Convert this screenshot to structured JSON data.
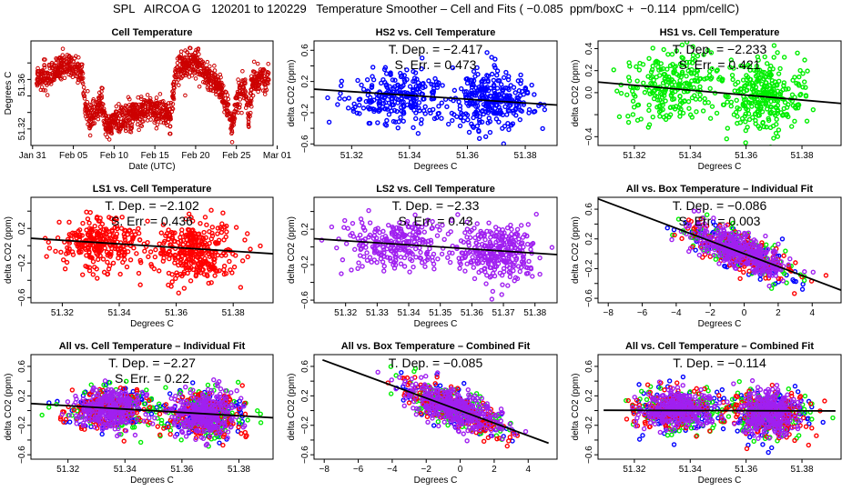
{
  "main_title": "SPL   AIRCOA G   120201 to 120229   Temperature Smoother – Cell and Fits ( −0.085  ppm/boxC +  −0.114  ppm/cellC)",
  "colors": {
    "HS2": "#0000ff",
    "HS1": "#00ee00",
    "LS1": "#ff0000",
    "LS2": "#a020f0",
    "cell_temp": "#cc0000",
    "fit_line": "#000000"
  },
  "chart_data": [
    {
      "id": "cell-temperature",
      "type": "scatter",
      "title": "Cell Temperature",
      "xlabel": "Date (UTC)",
      "ylabel": "Degrees C",
      "x_ticks": [
        "Jan 31",
        "Feb 05",
        "Feb 10",
        "Feb 15",
        "Feb 20",
        "Feb 25",
        "Mar 01"
      ],
      "xlim_days": [
        -0.2,
        29.5
      ],
      "y_ticks": [
        51.32,
        51.36
      ],
      "y_tick_labels": [
        "51.32",
        "51.36"
      ],
      "ylim": [
        51.305,
        51.4
      ],
      "series": [
        {
          "name": "cell",
          "color": "#cc0000",
          "profile_day": [
            1,
            2,
            3,
            4,
            5,
            6,
            6.5,
            7,
            8,
            8.5,
            9,
            10,
            11,
            12,
            13,
            14,
            15,
            16,
            17,
            17.5,
            18,
            19,
            20,
            21,
            22,
            23,
            24,
            24.5,
            25,
            26,
            26.5,
            27,
            28,
            29
          ],
          "profile_temp": [
            51.365,
            51.367,
            51.375,
            51.377,
            51.376,
            51.372,
            51.34,
            51.33,
            51.34,
            51.345,
            51.322,
            51.325,
            51.33,
            51.332,
            51.335,
            51.337,
            51.338,
            51.336,
            51.33,
            51.37,
            51.375,
            51.378,
            51.382,
            51.372,
            51.365,
            51.36,
            51.335,
            51.32,
            51.345,
            51.36,
            51.33,
            51.362,
            51.365,
            51.366
          ]
        }
      ]
    },
    {
      "id": "hs2-vs-cell",
      "type": "scatter",
      "title": "HS2 vs. Cell Temperature",
      "xlabel": "Degrees C",
      "ylabel": "delta CO2 (ppm)",
      "xlim": [
        51.307,
        51.391
      ],
      "ylim": [
        -0.62,
        0.72
      ],
      "x_ticks": [
        51.32,
        51.34,
        51.36,
        51.38
      ],
      "x_tick_labels": [
        "51.32",
        "51.34",
        "51.36",
        "51.38"
      ],
      "y_ticks": [
        -0.6,
        -0.4,
        -0.2,
        0,
        0.2,
        0.4,
        0.6
      ],
      "y_tick_labels": [
        "−0.6",
        "",
        "−0.2",
        "",
        "0.2",
        "",
        "0.6"
      ],
      "annotations": [
        "T. Dep. =  −2.417",
        "S. Err. =  0.473"
      ],
      "fit": {
        "slope": -2.417,
        "x0": 51.349,
        "y0": 0.0
      },
      "series": [
        {
          "name": "HS2",
          "color": "#0000ff",
          "clusters": [
            [
              51.336,
              0.0,
              0.009,
              0.16,
              260
            ],
            [
              51.368,
              -0.03,
              0.007,
              0.18,
              300
            ]
          ]
        }
      ]
    },
    {
      "id": "hs1-vs-cell",
      "type": "scatter",
      "title": "HS1 vs. Cell Temperature",
      "xlabel": "Degrees C",
      "ylabel": "delta CO2 (ppm)",
      "xlim": [
        51.307,
        51.394
      ],
      "ylim": [
        -0.48,
        0.47
      ],
      "x_ticks": [
        51.32,
        51.34,
        51.36,
        51.38
      ],
      "x_tick_labels": [
        "51.32",
        "51.34",
        "51.36",
        "51.38"
      ],
      "y_ticks": [
        -0.4,
        -0.2,
        0.0,
        0.2,
        0.4
      ],
      "y_tick_labels": [
        "−0.4",
        "",
        "0.0",
        "0.2",
        "0.4"
      ],
      "annotations": [
        "T. Dep. =  −2.233",
        "S. Err. =  0.421"
      ],
      "fit": {
        "slope": -2.233,
        "x0": 51.35,
        "y0": 0.0
      },
      "series": [
        {
          "name": "HS1",
          "color": "#00ee00",
          "clusters": [
            [
              51.334,
              0.05,
              0.009,
              0.14,
              260
            ],
            [
              51.367,
              -0.03,
              0.007,
              0.16,
              300
            ]
          ]
        }
      ]
    },
    {
      "id": "ls1-vs-cell",
      "type": "scatter",
      "title": "LS1 vs. Cell Temperature",
      "xlabel": "Degrees C",
      "ylabel": "delta CO2 (ppm)",
      "xlim": [
        51.309,
        51.394
      ],
      "ylim": [
        -0.66,
        0.56
      ],
      "x_ticks": [
        51.32,
        51.34,
        51.36,
        51.38
      ],
      "x_tick_labels": [
        "51.32",
        "51.34",
        "51.36",
        "51.38"
      ],
      "y_ticks": [
        -0.6,
        -0.4,
        -0.2,
        0,
        0.2,
        0.4
      ],
      "y_tick_labels": [
        "−0.6",
        "",
        "−0.2",
        "",
        "0.2",
        ""
      ],
      "annotations": [
        "T. Dep. =  −2.102",
        "S. Err. =  0.436"
      ],
      "fit": {
        "slope": -2.102,
        "x0": 51.35,
        "y0": 0.0
      },
      "series": [
        {
          "name": "LS1",
          "color": "#ff0000",
          "clusters": [
            [
              51.334,
              0.04,
              0.008,
              0.15,
              280
            ],
            [
              51.367,
              -0.07,
              0.007,
              0.17,
              320
            ]
          ]
        }
      ]
    },
    {
      "id": "ls2-vs-cell",
      "type": "scatter",
      "title": "LS2 vs. Cell Temperature",
      "xlabel": "Degrees C",
      "ylabel": "delta CO2 (ppm)",
      "xlim": [
        51.31,
        51.387
      ],
      "ylim": [
        -0.63,
        0.56
      ],
      "x_ticks": [
        51.32,
        51.33,
        51.34,
        51.35,
        51.36,
        51.37,
        51.38
      ],
      "x_tick_labels": [
        "51.32",
        "51.33",
        "51.34",
        "51.35",
        "51.36",
        "51.37",
        "51.38"
      ],
      "y_ticks": [
        -0.6,
        -0.4,
        -0.2,
        0,
        0.2,
        0.4
      ],
      "y_tick_labels": [
        "−0.6",
        "",
        "−0.2",
        "",
        "0.2",
        ""
      ],
      "annotations": [
        "T. Dep. =  −2.33",
        "S. Err. =  0.43"
      ],
      "fit": {
        "slope": -2.33,
        "x0": 51.35,
        "y0": 0.0
      },
      "series": [
        {
          "name": "LS2",
          "color": "#a020f0",
          "clusters": [
            [
              51.335,
              0.03,
              0.008,
              0.14,
              260
            ],
            [
              51.368,
              -0.06,
              0.006,
              0.16,
              300
            ]
          ]
        }
      ]
    },
    {
      "id": "all-vs-box-individual",
      "type": "scatter",
      "title": "All vs. Box Temperature – Individual Fit",
      "xlabel": "Degrees C",
      "ylabel": "delta CO2 (ppm)",
      "xlim": [
        -8.6,
        5.7
      ],
      "ylim": [
        -0.66,
        0.76
      ],
      "x_ticks": [
        -8,
        -6,
        -4,
        -2,
        0,
        2,
        4
      ],
      "x_tick_labels": [
        "−8",
        "−6",
        "−4",
        "−2",
        "0",
        "2",
        "4"
      ],
      "y_ticks": [
        -0.6,
        -0.4,
        -0.2,
        0,
        0.2,
        0.4,
        0.6
      ],
      "y_tick_labels": [
        "−0.6",
        "",
        "−0.2",
        "",
        "0.2",
        "",
        "0.6"
      ],
      "annotations": [
        "T. Dep. =  −0.086",
        "S. Err. =  0.003"
      ],
      "fit": {
        "slope": -0.086,
        "x0": 0,
        "y0": 0.0
      },
      "series": [
        {
          "name": "HS2",
          "color": "#0000ff",
          "clusters": [
            [
              -0.3,
              0.03,
              1.6,
              0.16,
              140
            ]
          ]
        },
        {
          "name": "HS1",
          "color": "#00ee00",
          "clusters": [
            [
              -0.3,
              0.03,
              1.6,
              0.16,
              140
            ]
          ]
        },
        {
          "name": "LS1",
          "color": "#ff0000",
          "clusters": [
            [
              -0.3,
              0.03,
              1.6,
              0.16,
              160
            ]
          ]
        },
        {
          "name": "LS2",
          "color": "#a020f0",
          "clusters": [
            [
              -0.3,
              0.03,
              1.4,
              0.15,
              380
            ]
          ]
        }
      ]
    },
    {
      "id": "all-vs-cell-individual",
      "type": "scatter",
      "title": "All vs. Cell Temperature – Individual Fit",
      "xlabel": "Degrees C",
      "ylabel": "delta CO2 (ppm)",
      "xlim": [
        51.307,
        51.392
      ],
      "ylim": [
        -0.66,
        0.76
      ],
      "x_ticks": [
        51.32,
        51.34,
        51.36,
        51.38
      ],
      "x_tick_labels": [
        "51.32",
        "51.34",
        "51.36",
        "51.38"
      ],
      "y_ticks": [
        -0.6,
        -0.4,
        -0.2,
        0,
        0.2,
        0.4,
        0.6
      ],
      "y_tick_labels": [
        "−0.6",
        "",
        "−0.2",
        "",
        "0.2",
        "",
        "0.6"
      ],
      "annotations": [
        "T. Dep. =  −2.27",
        "S. Err. =  0.22"
      ],
      "fit": {
        "slope": -2.27,
        "x0": 51.349,
        "y0": 0.0
      },
      "series": [
        {
          "name": "HS2",
          "color": "#0000ff",
          "clusters": [
            [
              51.335,
              0.02,
              0.008,
              0.15,
              120
            ],
            [
              51.368,
              -0.04,
              0.007,
              0.17,
              130
            ]
          ]
        },
        {
          "name": "HS1",
          "color": "#00ee00",
          "clusters": [
            [
              51.335,
              0.02,
              0.008,
              0.15,
              120
            ],
            [
              51.368,
              -0.04,
              0.007,
              0.17,
              130
            ]
          ]
        },
        {
          "name": "LS1",
          "color": "#ff0000",
          "clusters": [
            [
              51.335,
              0.02,
              0.008,
              0.15,
              140
            ],
            [
              51.368,
              -0.04,
              0.007,
              0.17,
              150
            ]
          ]
        },
        {
          "name": "LS2",
          "color": "#a020f0",
          "clusters": [
            [
              51.335,
              0.02,
              0.006,
              0.13,
              300
            ],
            [
              51.368,
              -0.04,
              0.005,
              0.15,
              320
            ]
          ]
        }
      ]
    },
    {
      "id": "all-vs-box-combined",
      "type": "scatter",
      "title": "All vs. Box Temperature – Combined Fit",
      "xlabel": "Degrees C",
      "ylabel": "delta CO2 (ppm)",
      "xlim": [
        -8.6,
        5.7
      ],
      "ylim": [
        -0.66,
        0.76
      ],
      "x_ticks": [
        -8,
        -6,
        -4,
        -2,
        0,
        2,
        4
      ],
      "x_tick_labels": [
        "−8",
        "−6",
        "−4",
        "−2",
        "0",
        "2",
        "4"
      ],
      "y_ticks": [
        -0.6,
        -0.4,
        -0.2,
        0,
        0.2,
        0.4,
        0.6
      ],
      "y_tick_labels": [
        "−0.6",
        "",
        "−0.2",
        "",
        "0.2",
        "",
        "0.6"
      ],
      "annotations": [
        "T. Dep. =  −0.085"
      ],
      "fit": {
        "slope": -0.085,
        "x0": 0,
        "y0": 0.0,
        "xrange": [
          -8.1,
          5.2
        ]
      },
      "series": [
        {
          "name": "HS2",
          "color": "#0000ff",
          "clusters": [
            [
              -0.3,
              0.03,
              1.6,
              0.16,
              140
            ]
          ]
        },
        {
          "name": "HS1",
          "color": "#00ee00",
          "clusters": [
            [
              -0.3,
              0.03,
              1.6,
              0.16,
              140
            ]
          ]
        },
        {
          "name": "LS1",
          "color": "#ff0000",
          "clusters": [
            [
              -0.3,
              0.03,
              1.6,
              0.16,
              160
            ]
          ]
        },
        {
          "name": "LS2",
          "color": "#a020f0",
          "clusters": [
            [
              -0.3,
              0.03,
              1.4,
              0.15,
              380
            ]
          ]
        }
      ]
    },
    {
      "id": "all-vs-cell-combined",
      "type": "scatter",
      "title": "All vs. Cell Temperature – Combined Fit",
      "xlabel": "Degrees C",
      "ylabel": "delta CO2 (ppm)",
      "xlim": [
        51.307,
        51.394
      ],
      "ylim": [
        -0.66,
        0.76
      ],
      "x_ticks": [
        51.32,
        51.34,
        51.36,
        51.38
      ],
      "x_tick_labels": [
        "51.32",
        "51.34",
        "51.36",
        "51.38"
      ],
      "y_ticks": [
        -0.6,
        -0.4,
        -0.2,
        0,
        0.2,
        0.4,
        0.6
      ],
      "y_tick_labels": [
        "−0.6",
        "",
        "−0.2",
        "",
        "0.2",
        "",
        "0.6"
      ],
      "annotations": [
        "T. Dep. =  −0.114"
      ],
      "fit": {
        "slope": -0.114,
        "x0": 51.35,
        "y0": 0.0,
        "xrange": [
          51.309,
          51.392
        ]
      },
      "series": [
        {
          "name": "HS2",
          "color": "#0000ff",
          "clusters": [
            [
              51.335,
              0.02,
              0.008,
              0.15,
              120
            ],
            [
              51.368,
              -0.04,
              0.007,
              0.17,
              130
            ]
          ]
        },
        {
          "name": "HS1",
          "color": "#00ee00",
          "clusters": [
            [
              51.335,
              0.02,
              0.008,
              0.15,
              120
            ],
            [
              51.368,
              -0.04,
              0.007,
              0.17,
              130
            ]
          ]
        },
        {
          "name": "LS1",
          "color": "#ff0000",
          "clusters": [
            [
              51.335,
              0.02,
              0.008,
              0.15,
              140
            ],
            [
              51.368,
              -0.04,
              0.007,
              0.17,
              150
            ]
          ]
        },
        {
          "name": "LS2",
          "color": "#a020f0",
          "clusters": [
            [
              51.335,
              0.02,
              0.006,
              0.13,
              300
            ],
            [
              51.368,
              -0.04,
              0.005,
              0.15,
              320
            ]
          ]
        }
      ]
    }
  ]
}
